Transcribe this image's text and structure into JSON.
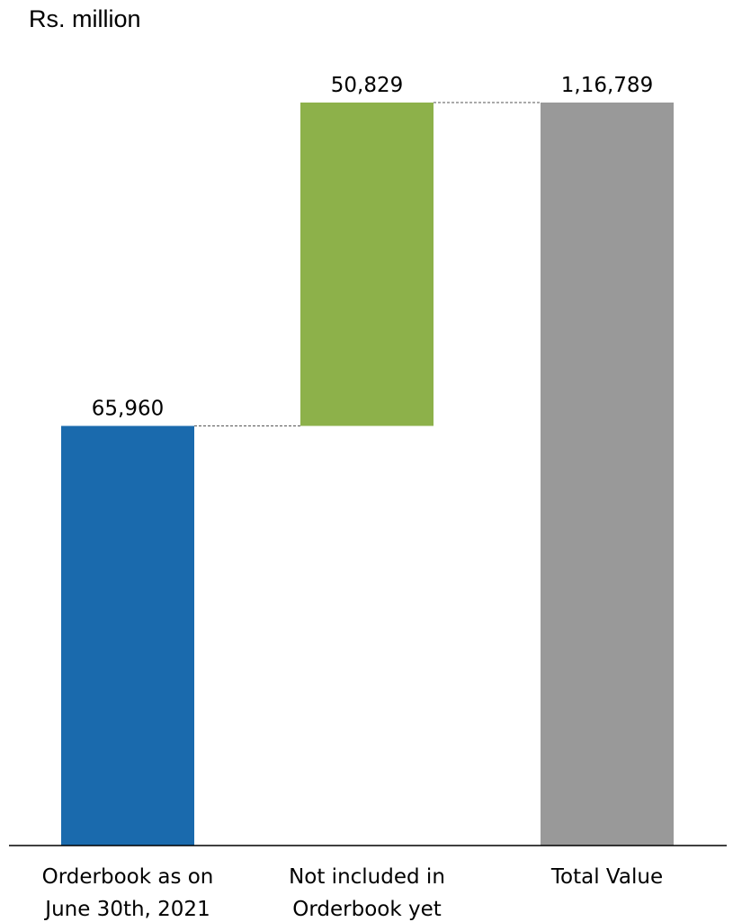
{
  "chart_data": {
    "type": "waterfall",
    "unit_label": "Rs. million",
    "categories": [
      [
        "Orderbook as on",
        "June 30th, 2021"
      ],
      [
        "Not included in",
        "Orderbook yet"
      ],
      [
        "Total Value"
      ]
    ],
    "values": [
      65960,
      50829,
      116789
    ],
    "value_labels": [
      "65,960",
      "50,829",
      "1,16,789"
    ],
    "bar_kinds": [
      "start",
      "increase",
      "total"
    ],
    "colors": [
      "#1a6aad",
      "#8db14a",
      "#999999"
    ],
    "ylim": [
      0,
      116789
    ],
    "grid": false,
    "legend": "none"
  }
}
